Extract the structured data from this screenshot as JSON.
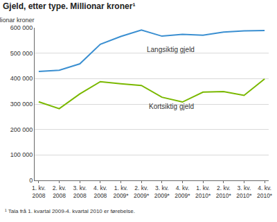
{
  "chart_data": {
    "type": "line",
    "title": "Gjeld, etter type. Millionar kroner¹",
    "y_label": "Millionar kroner",
    "footnote": "¹ Tala frå 1. kvartal 2009-4. kvartal 2010 er førebelse.",
    "categories": [
      "1. kv. 2008",
      "2. kv. 2008",
      "3. kv. 2008",
      "4. kv. 2008",
      "1. kv. 2009*",
      "2. kv. 2009*",
      "3. kv. 2009*",
      "4. kv. 2009*",
      "1. kv. 2010*",
      "2. kv. 2010*",
      "3. kv. 2010*",
      "4. kv. 2010*"
    ],
    "series": [
      {
        "name": "Langsiktig gjeld",
        "color": "#3a8fd1",
        "values": [
          428000,
          433000,
          458000,
          535000,
          566000,
          591000,
          567000,
          574000,
          571000,
          583000,
          588000,
          589000
        ]
      },
      {
        "name": "Kortsiktig gjeld",
        "color": "#7ab800",
        "values": [
          309000,
          282000,
          340000,
          388000,
          380000,
          373000,
          327000,
          308000,
          347000,
          349000,
          334000,
          399000
        ]
      }
    ],
    "ylim": [
      0,
      600000
    ],
    "yticks": [
      0,
      {
        "value": 100000,
        "label": "100 000"
      },
      {
        "value": 200000,
        "label": "200 000"
      },
      {
        "value": 300000,
        "label": "300 000"
      },
      {
        "value": 400000,
        "label": "400 000"
      },
      {
        "value": 500000,
        "label": "500 000"
      },
      {
        "value": 600000,
        "label": "600 000"
      }
    ],
    "grid": true
  }
}
